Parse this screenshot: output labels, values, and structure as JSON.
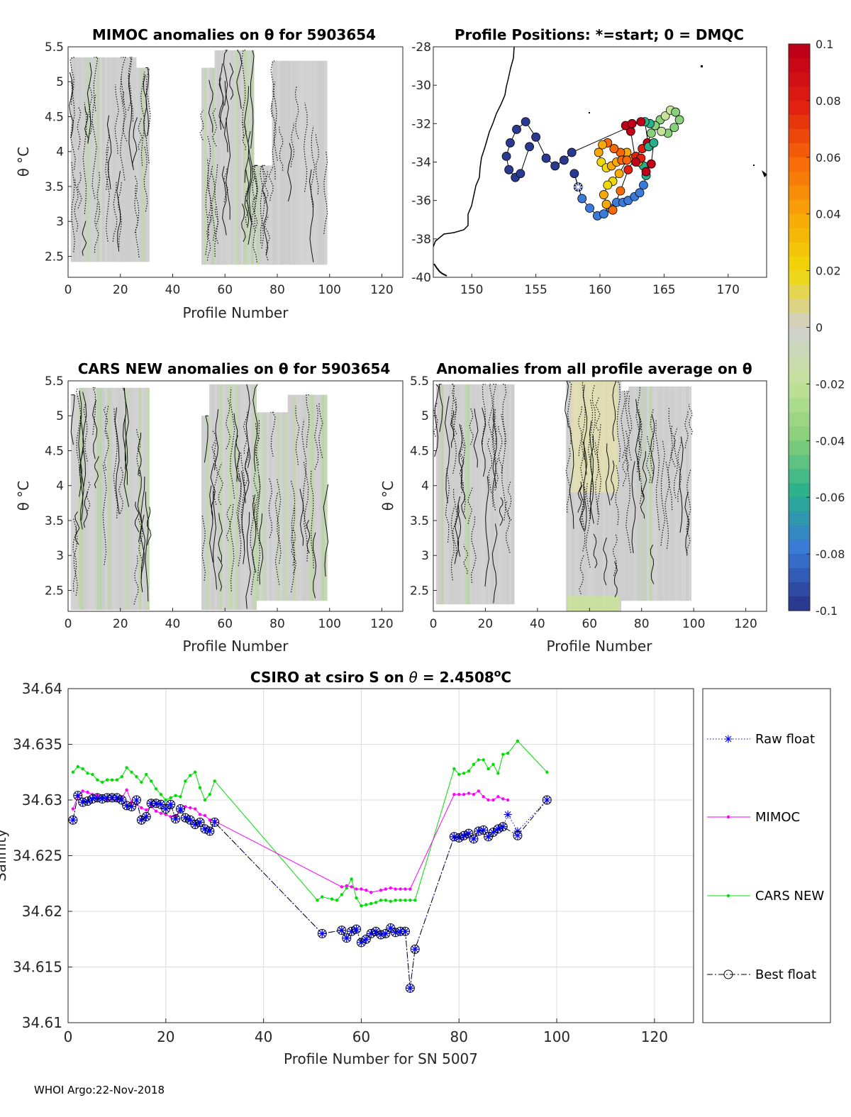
{
  "footer": "WHOI Argo:22-Nov-2018",
  "panels": {
    "mimoc": {
      "title": "MIMOC anomalies on θ  for 5903654",
      "xlabel": "Profile Number",
      "ylabel": "θ °C",
      "xticks": [
        "0",
        "20",
        "40",
        "60",
        "80",
        "100",
        "120"
      ],
      "yticks": [
        "2.5",
        "3",
        "3.5",
        "4",
        "4.5",
        "5",
        "5.5"
      ],
      "xlim": [
        0,
        128
      ],
      "ylim": [
        2.2,
        5.5
      ]
    },
    "positions": {
      "title": "Profile Positions: *=start; 0 = DMQC",
      "xticks": [
        "150",
        "155",
        "160",
        "165",
        "170"
      ],
      "yticks": [
        "-28",
        "-30",
        "-32",
        "-34",
        "-36",
        "-38",
        "-40"
      ],
      "xlim": [
        147,
        173
      ],
      "ylim": [
        -40,
        -28
      ]
    },
    "cars": {
      "title": "CARS NEW anomalies on θ for 5903654",
      "xlabel": "Profile Number",
      "ylabel": "θ °C",
      "xticks": [
        "0",
        "20",
        "40",
        "60",
        "80",
        "100",
        "120"
      ],
      "yticks": [
        "2.5",
        "3",
        "3.5",
        "4",
        "4.5",
        "5",
        "5.5"
      ],
      "xlim": [
        0,
        128
      ],
      "ylim": [
        2.2,
        5.5
      ]
    },
    "average": {
      "title": "Anomalies from all profile average on θ",
      "xlabel": "Profile Number",
      "ylabel": "θ °C",
      "xticks": [
        "0",
        "20",
        "40",
        "60",
        "80",
        "100",
        "120"
      ],
      "yticks": [
        "2.5",
        "3",
        "3.5",
        "4",
        "4.5",
        "5",
        "5.5"
      ],
      "xlim": [
        0,
        128
      ],
      "ylim": [
        2.2,
        5.5
      ]
    }
  },
  "colorbar": {
    "ticks": [
      "0.1",
      "0.08",
      "0.06",
      "0.04",
      "0.02",
      "0",
      "-0.02",
      "-0.04",
      "-0.06",
      "-0.08",
      "-0.1"
    ],
    "colors": [
      "#c00018",
      "#e02010",
      "#f86a08",
      "#f8a808",
      "#f0d808",
      "#d0d0d0",
      "#c4e29a",
      "#88d07a",
      "#28b08c",
      "#3a7ad8",
      "#2a3a90"
    ]
  },
  "chart_data": {
    "type": "line",
    "title_prefix": "CSIRO at csiro S on",
    "title_theta": "θ",
    "title_value": " = 2.4508",
    "title_unit_sup": "o",
    "title_unit": "C",
    "xlabel": "Profile Number for SN 5007",
    "ylabel": "Salinity",
    "xlim": [
      0,
      128
    ],
    "ylim": [
      34.61,
      34.64
    ],
    "xticks": [
      "0",
      "20",
      "40",
      "60",
      "80",
      "100",
      "120"
    ],
    "yticks": [
      "34.61",
      "34.615",
      "34.62",
      "34.625",
      "34.63",
      "34.635",
      "34.64"
    ],
    "grid": true,
    "legend_position": "outside-right",
    "series": [
      {
        "name": "Raw float",
        "color": "#0000ff",
        "style": "dotted",
        "marker": "asterisk",
        "x": [
          1,
          2,
          3,
          4,
          5,
          6,
          7,
          8,
          9,
          10,
          11,
          12,
          13,
          14,
          15,
          16,
          17,
          18,
          19,
          20,
          21,
          22,
          23,
          24,
          25,
          26,
          27,
          28,
          29,
          30,
          52,
          56,
          57,
          58,
          59,
          60,
          61,
          62,
          63,
          64,
          65,
          66,
          67,
          68,
          69,
          70,
          71,
          79,
          80,
          81,
          82,
          83,
          84,
          85,
          86,
          87,
          88,
          89,
          90,
          92,
          98
        ],
        "y": [
          34.6282,
          34.6304,
          34.6298,
          34.6299,
          34.6301,
          34.6302,
          34.6301,
          34.6302,
          34.6302,
          34.6302,
          34.63,
          34.6295,
          34.6294,
          34.63,
          34.6282,
          34.6285,
          34.6297,
          34.6297,
          34.6296,
          34.6292,
          34.6296,
          34.6283,
          34.6292,
          34.6284,
          34.6282,
          34.6278,
          34.628,
          34.6274,
          34.6272,
          34.628,
          34.618,
          34.6183,
          34.6176,
          34.6182,
          34.6184,
          34.6172,
          34.6175,
          34.618,
          34.6182,
          34.6179,
          34.618,
          34.6185,
          34.6181,
          34.6182,
          34.6182,
          34.6131,
          34.6166,
          34.6267,
          34.6266,
          34.6268,
          34.627,
          34.6265,
          34.6272,
          34.6273,
          34.6267,
          34.6271,
          34.6274,
          34.6276,
          34.6287,
          34.6272,
          34.63
        ]
      },
      {
        "name": "MIMOC",
        "color": "#ff00ff",
        "style": "solid",
        "marker": "dot",
        "x": [
          1,
          2,
          3,
          4,
          5,
          6,
          7,
          8,
          9,
          10,
          11,
          12,
          13,
          14,
          15,
          16,
          17,
          18,
          19,
          20,
          21,
          22,
          23,
          24,
          25,
          26,
          27,
          28,
          29,
          30,
          56,
          57,
          58,
          59,
          60,
          61,
          62,
          64,
          65,
          66,
          67,
          68,
          69,
          70,
          79,
          80,
          81,
          82,
          83,
          84,
          85,
          86,
          87,
          88,
          89,
          90
        ],
        "y": [
          34.6292,
          34.6303,
          34.6308,
          34.6307,
          34.6305,
          34.6304,
          34.6302,
          34.63,
          34.6301,
          34.63,
          34.6302,
          34.6309,
          34.6298,
          34.6296,
          34.6293,
          34.6291,
          34.6294,
          34.629,
          34.6288,
          34.6287,
          34.6285,
          34.6286,
          34.629,
          34.6294,
          34.6293,
          34.6292,
          34.6287,
          34.6286,
          34.6282,
          34.6281,
          34.6222,
          34.6223,
          34.6222,
          34.622,
          34.622,
          34.6219,
          34.6217,
          34.6219,
          34.622,
          34.6221,
          34.622,
          34.622,
          34.622,
          34.622,
          34.6305,
          34.6305,
          34.6305,
          34.6306,
          34.6305,
          34.6308,
          34.6303,
          34.63,
          34.63,
          34.6303,
          34.6301,
          34.63
        ]
      },
      {
        "name": "CARS NEW",
        "color": "#00dd00",
        "style": "solid",
        "marker": "dot",
        "x": [
          1,
          2,
          3,
          4,
          5,
          6,
          7,
          8,
          9,
          10,
          11,
          12,
          13,
          14,
          15,
          16,
          17,
          18,
          19,
          20,
          21,
          22,
          23,
          24,
          25,
          26,
          27,
          28,
          29,
          30,
          51,
          52,
          54,
          55,
          56,
          57,
          58,
          59,
          60,
          61,
          62,
          63,
          64,
          65,
          66,
          67,
          68,
          69,
          70,
          71,
          79,
          80,
          81,
          82,
          83,
          84,
          85,
          86,
          87,
          88,
          89,
          90,
          92,
          98
        ],
        "y": [
          34.6325,
          34.633,
          34.6328,
          34.6324,
          34.6323,
          34.6318,
          34.6316,
          34.6318,
          34.6318,
          34.6318,
          34.6321,
          34.6329,
          34.6325,
          34.6321,
          34.6316,
          34.6323,
          34.6317,
          34.631,
          34.6305,
          34.63,
          34.6302,
          34.6304,
          34.6303,
          34.6317,
          34.6322,
          34.6325,
          34.6311,
          34.63,
          34.6305,
          34.6317,
          34.621,
          34.6213,
          34.6211,
          34.621,
          34.6215,
          34.6221,
          34.6229,
          34.6212,
          34.6205,
          34.6206,
          34.6207,
          34.6208,
          34.621,
          34.621,
          34.6209,
          34.621,
          34.621,
          34.621,
          34.621,
          34.621,
          34.6328,
          34.6323,
          34.6324,
          34.6326,
          34.6332,
          34.6336,
          34.6336,
          34.6328,
          34.6332,
          34.6324,
          34.6341,
          34.6342,
          34.6353,
          34.6325
        ]
      },
      {
        "name": "Best float",
        "color": "#000000",
        "style": "dashdot",
        "marker": "circle",
        "x": [
          1,
          2,
          3,
          4,
          5,
          6,
          7,
          8,
          9,
          10,
          11,
          12,
          13,
          14,
          15,
          16,
          17,
          18,
          19,
          20,
          21,
          22,
          23,
          24,
          25,
          26,
          27,
          28,
          29,
          30,
          52,
          56,
          57,
          58,
          59,
          60,
          61,
          62,
          63,
          64,
          65,
          66,
          67,
          68,
          69,
          70,
          71,
          79,
          80,
          81,
          82,
          83,
          84,
          85,
          86,
          87,
          88,
          89,
          92,
          98
        ],
        "y": [
          34.6282,
          34.6304,
          34.6298,
          34.6299,
          34.6301,
          34.6302,
          34.6301,
          34.6302,
          34.6302,
          34.6302,
          34.63,
          34.6295,
          34.6294,
          34.63,
          34.6282,
          34.6285,
          34.6297,
          34.6297,
          34.6296,
          34.6292,
          34.6296,
          34.6283,
          34.6292,
          34.6284,
          34.6282,
          34.6278,
          34.628,
          34.6274,
          34.6272,
          34.628,
          34.618,
          34.6183,
          34.6176,
          34.6182,
          34.6184,
          34.6172,
          34.6175,
          34.618,
          34.6182,
          34.6179,
          34.618,
          34.6185,
          34.6181,
          34.6182,
          34.6182,
          34.6131,
          34.6166,
          34.6267,
          34.6266,
          34.6268,
          34.627,
          34.6265,
          34.6272,
          34.6273,
          34.6267,
          34.6271,
          34.6274,
          34.6276,
          34.6268,
          34.63
        ]
      }
    ],
    "positions": {
      "lon": [
        158.3,
        158.0,
        158.6,
        159.2,
        159.8,
        160.3,
        160.8,
        161.3,
        161.8,
        162.2,
        162.7,
        163.1,
        163.4,
        163.6,
        163.4,
        163.0,
        162.6,
        162.1,
        161.6,
        161.1,
        160.6,
        160.2,
        159.9,
        160.1,
        160.5,
        160.9,
        161.3,
        161.7,
        162.1,
        161.5,
        161.0,
        160.6,
        160.3,
        160.5,
        161.0,
        161.6,
        162.2,
        162.8,
        163.3,
        163.7,
        164.0,
        164.3,
        164.7,
        165.1,
        165.5,
        165.9,
        166.2,
        165.8,
        165.3,
        164.8,
        164.3,
        163.9,
        163.5,
        163.8,
        164.2,
        164.0,
        163.6,
        163.2,
        162.8,
        162.4,
        162.0,
        162.5,
        163.2,
        157.8,
        157.2,
        156.5,
        155.8,
        155.0,
        154.2,
        153.5,
        153.0,
        152.7,
        152.9,
        153.4,
        153.8,
        154.5
      ],
      "lat": [
        -35.3,
        -34.6,
        -35.9,
        -36.4,
        -36.8,
        -36.7,
        -36.4,
        -36.1,
        -36.1,
        -36.0,
        -35.8,
        -35.6,
        -35.2,
        -34.7,
        -34.2,
        -34.0,
        -33.8,
        -33.5,
        -33.5,
        -33.3,
        -33.0,
        -33.1,
        -33.5,
        -34.0,
        -34.3,
        -34.2,
        -34.0,
        -33.9,
        -33.9,
        -34.6,
        -35.0,
        -35.2,
        -35.7,
        -36.2,
        -36.5,
        -35.5,
        -34.4,
        -33.7,
        -33.3,
        -33.0,
        -32.5,
        -32.1,
        -31.8,
        -31.6,
        -31.3,
        -31.4,
        -31.8,
        -32.2,
        -32.5,
        -32.4,
        -32.1,
        -32.0,
        -31.9,
        -33.2,
        -33.0,
        -34.1,
        -34.5,
        -33.8,
        -34.0,
        -32.4,
        -32.1,
        -32.0,
        -31.9,
        -33.5,
        -33.9,
        -34.2,
        -33.8,
        -32.7,
        -31.9,
        -32.3,
        -33.0,
        -33.7,
        -34.4,
        -34.8,
        -34.6,
        -33.2
      ],
      "value": [
        -0.1,
        -0.09,
        -0.08,
        -0.08,
        -0.08,
        -0.07,
        -0.07,
        -0.07,
        -0.07,
        -0.07,
        -0.07,
        -0.07,
        -0.07,
        -0.065,
        -0.05,
        0.045,
        0.05,
        0.05,
        0.055,
        0.06,
        0.06,
        0.05,
        0.04,
        0.03,
        0.03,
        0.04,
        0.05,
        0.06,
        0.07,
        0.04,
        0.03,
        0.03,
        0.05,
        0.05,
        0.06,
        0.07,
        0.08,
        0.09,
        0.09,
        0.1,
        -0.04,
        -0.03,
        -0.03,
        -0.02,
        -0.02,
        -0.03,
        -0.04,
        -0.04,
        -0.03,
        -0.02,
        -0.03,
        -0.05,
        -0.05,
        -0.05,
        -0.05,
        0.1,
        0.1,
        0.09,
        0.1,
        0.1,
        0.1,
        0.1,
        0.1,
        -0.09,
        -0.09,
        -0.1,
        -0.09,
        -0.09,
        -0.1,
        -0.09,
        -0.09,
        -0.09,
        -0.09,
        -0.09,
        -0.09,
        -0.09
      ]
    }
  }
}
